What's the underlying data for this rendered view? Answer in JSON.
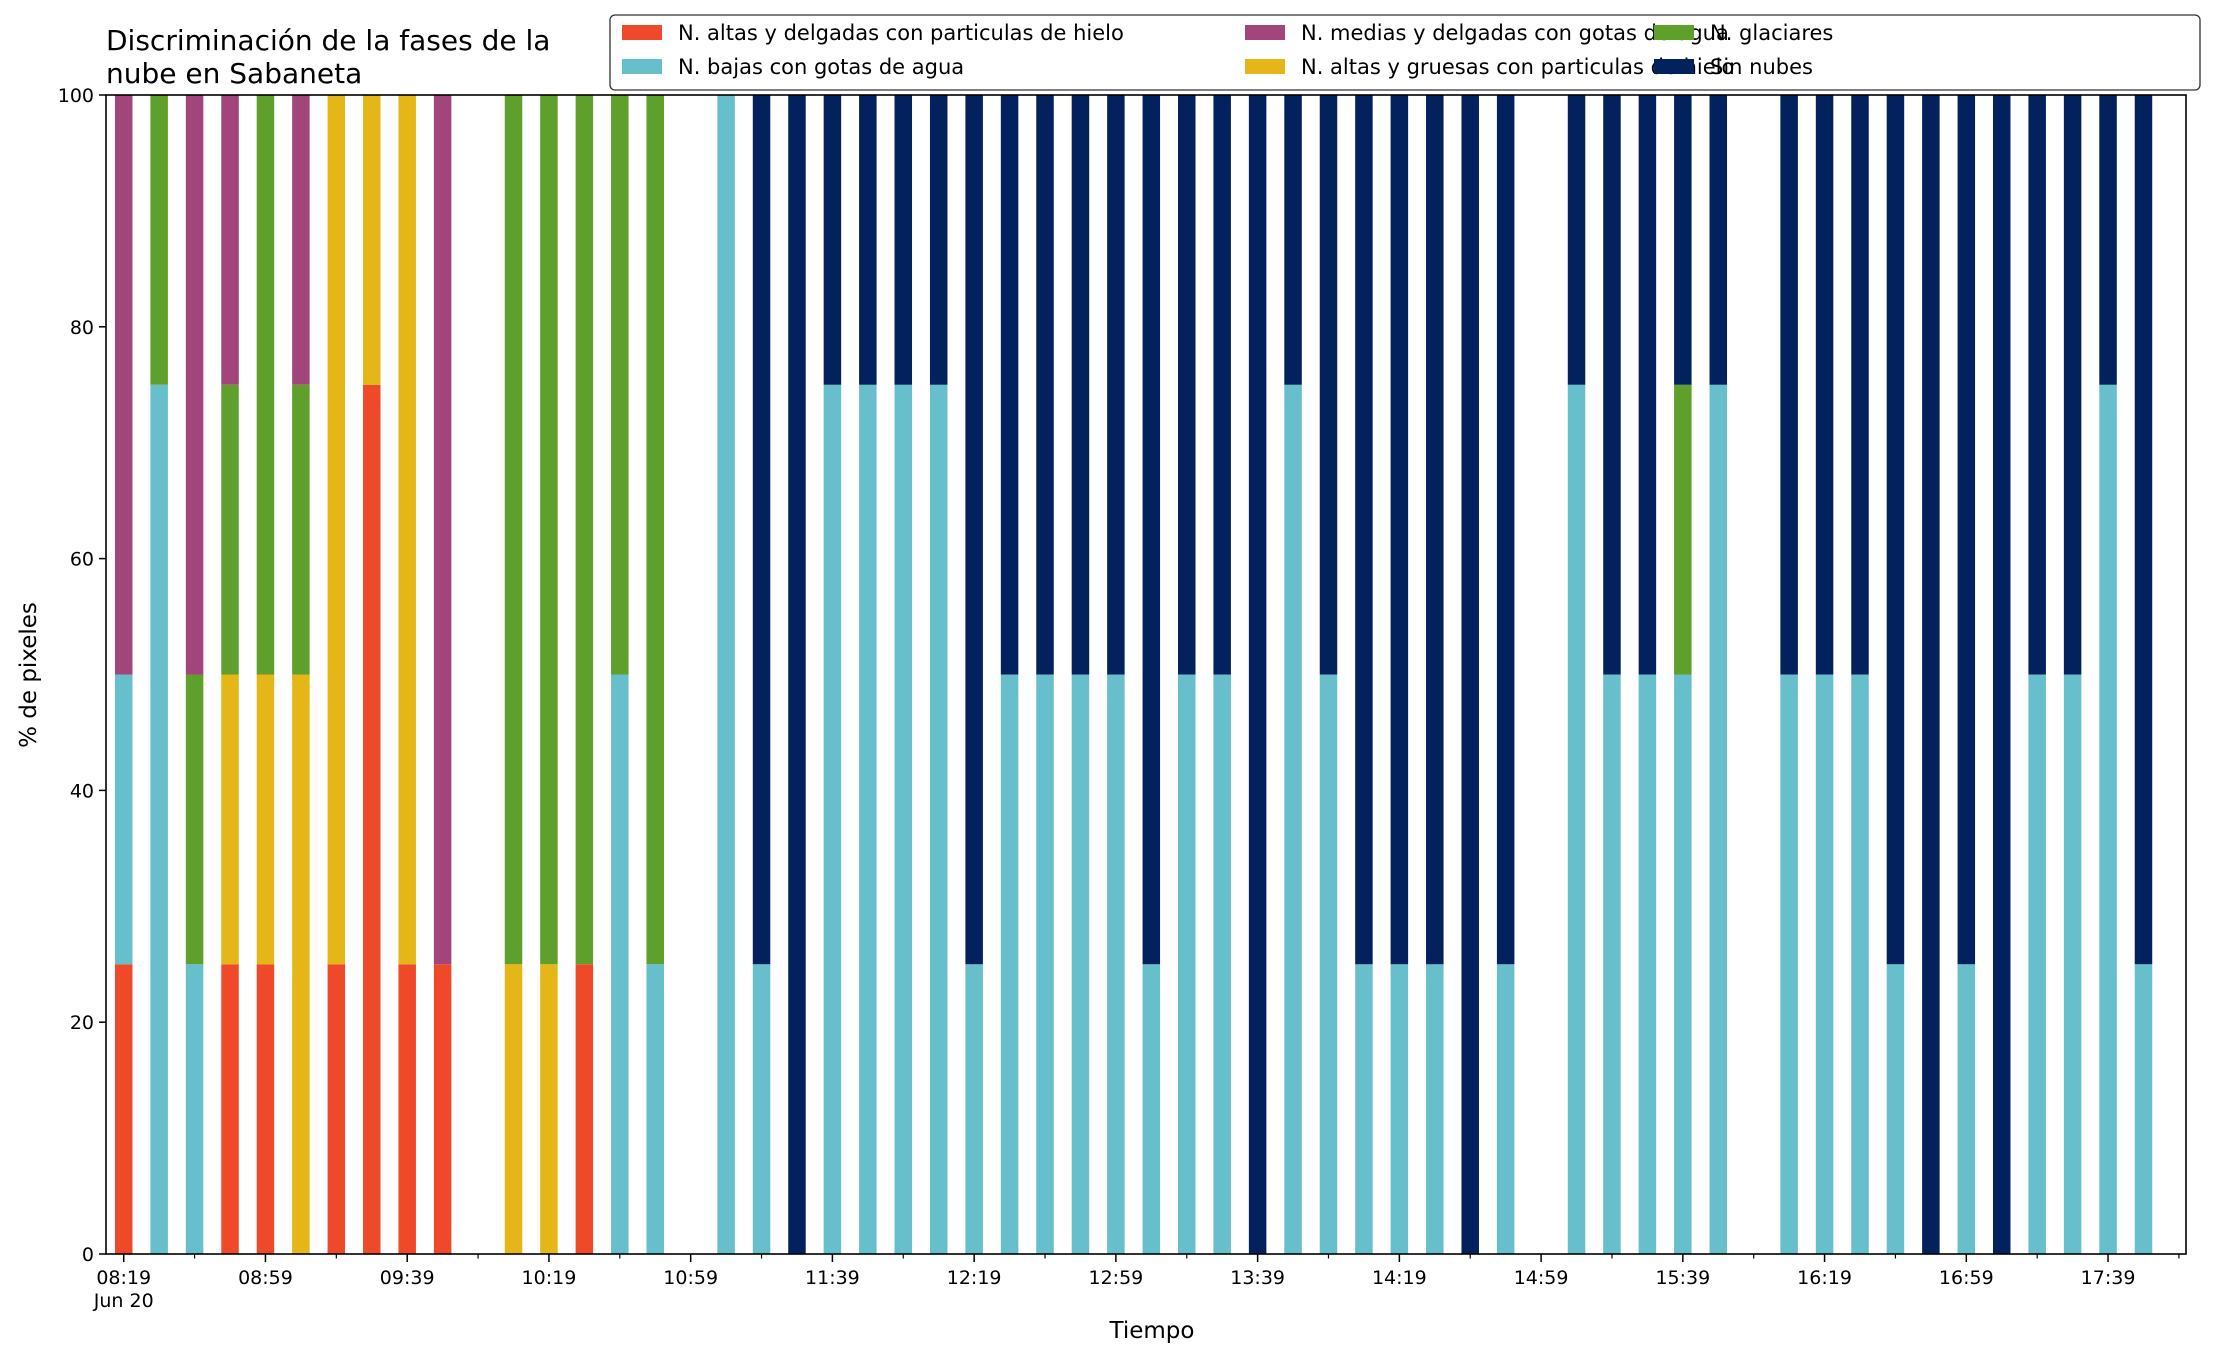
{
  "chart_data": {
    "type": "bar",
    "stacked": true,
    "title": "Discriminación de la fases de la nube en Sabaneta",
    "title_lines": [
      "Discriminación de la fases de la",
      "nube en Sabaneta"
    ],
    "xlabel": "Tiempo",
    "ylabel": "% de pixeles",
    "ylim": [
      0,
      100
    ],
    "yticks": [
      0,
      20,
      40,
      60,
      80,
      100
    ],
    "xlim": [
      "08:14",
      "18:01"
    ],
    "date_label": "Jun 20",
    "grid": false,
    "legend_position": "top-right",
    "xtick_labels": [
      "08:19",
      "08:59",
      "09:39",
      "10:19",
      "10:59",
      "11:39",
      "12:19",
      "12:59",
      "13:39",
      "14:19",
      "14:59",
      "15:39",
      "16:19",
      "16:59",
      "17:39"
    ],
    "minor_ticks_every_minutes": 20,
    "series": [
      {
        "name": "N. altas y delgadas con particulas de hielo",
        "color": "#ee4a2a"
      },
      {
        "name": "N. altas y gruesas con particulas de hielo",
        "color": "#e5b617"
      },
      {
        "name": "N. bajas con gotas de agua",
        "color": "#66bfcb"
      },
      {
        "name": "N. glaciares",
        "color": "#5f9f2b"
      },
      {
        "name": "N. medias y delgadas con gotas de agua",
        "color": "#a2457b"
      },
      {
        "name": "Sin nubes",
        "color": "#03215d"
      }
    ],
    "legend_order": [
      0,
      2,
      4,
      1,
      3,
      5
    ],
    "bars": [
      {
        "time": "08:19",
        "values": [
          25,
          0,
          25,
          0,
          50,
          0
        ]
      },
      {
        "time": "08:29",
        "values": [
          0,
          0,
          75,
          25,
          0,
          0
        ]
      },
      {
        "time": "08:39",
        "values": [
          0,
          0,
          25,
          25,
          50,
          0
        ]
      },
      {
        "time": "08:49",
        "values": [
          25,
          25,
          0,
          25,
          25,
          0
        ]
      },
      {
        "time": "08:59",
        "values": [
          25,
          25,
          0,
          50,
          0,
          0
        ]
      },
      {
        "time": "09:09",
        "values": [
          0,
          50,
          0,
          25,
          25,
          0
        ]
      },
      {
        "time": "09:19",
        "values": [
          25,
          75,
          0,
          0,
          0,
          0
        ]
      },
      {
        "time": "09:29",
        "values": [
          75,
          25,
          0,
          0,
          0,
          0
        ]
      },
      {
        "time": "09:39",
        "values": [
          25,
          75,
          0,
          0,
          0,
          0
        ]
      },
      {
        "time": "09:49",
        "values": [
          25,
          0,
          0,
          0,
          75,
          0
        ]
      },
      {
        "time": "10:09",
        "values": [
          0,
          25,
          0,
          75,
          0,
          0
        ]
      },
      {
        "time": "10:19",
        "values": [
          0,
          25,
          0,
          75,
          0,
          0
        ]
      },
      {
        "time": "10:29",
        "values": [
          25,
          0,
          0,
          75,
          0,
          0
        ]
      },
      {
        "time": "10:39",
        "values": [
          0,
          0,
          50,
          50,
          0,
          0
        ]
      },
      {
        "time": "10:49",
        "values": [
          0,
          0,
          25,
          75,
          0,
          0
        ]
      },
      {
        "time": "11:09",
        "values": [
          0,
          0,
          100,
          0,
          0,
          0
        ]
      },
      {
        "time": "11:19",
        "values": [
          0,
          0,
          25,
          0,
          0,
          75
        ]
      },
      {
        "time": "11:29",
        "values": [
          0,
          0,
          0,
          0,
          0,
          100
        ]
      },
      {
        "time": "11:39",
        "values": [
          0,
          0,
          75,
          0,
          0,
          25
        ]
      },
      {
        "time": "11:49",
        "values": [
          0,
          0,
          75,
          0,
          0,
          25
        ]
      },
      {
        "time": "11:59",
        "values": [
          0,
          0,
          75,
          0,
          0,
          25
        ]
      },
      {
        "time": "12:09",
        "values": [
          0,
          0,
          75,
          0,
          0,
          25
        ]
      },
      {
        "time": "12:19",
        "values": [
          0,
          0,
          25,
          0,
          0,
          75
        ]
      },
      {
        "time": "12:29",
        "values": [
          0,
          0,
          50,
          0,
          0,
          50
        ]
      },
      {
        "time": "12:39",
        "values": [
          0,
          0,
          50,
          0,
          0,
          50
        ]
      },
      {
        "time": "12:49",
        "values": [
          0,
          0,
          50,
          0,
          0,
          50
        ]
      },
      {
        "time": "12:59",
        "values": [
          0,
          0,
          50,
          0,
          0,
          50
        ]
      },
      {
        "time": "13:09",
        "values": [
          0,
          0,
          25,
          0,
          0,
          75
        ]
      },
      {
        "time": "13:19",
        "values": [
          0,
          0,
          50,
          0,
          0,
          50
        ]
      },
      {
        "time": "13:29",
        "values": [
          0,
          0,
          50,
          0,
          0,
          50
        ]
      },
      {
        "time": "13:39",
        "values": [
          0,
          0,
          0,
          0,
          0,
          100
        ]
      },
      {
        "time": "13:49",
        "values": [
          0,
          0,
          75,
          0,
          0,
          25
        ]
      },
      {
        "time": "13:59",
        "values": [
          0,
          0,
          50,
          0,
          0,
          50
        ]
      },
      {
        "time": "14:09",
        "values": [
          0,
          0,
          25,
          0,
          0,
          75
        ]
      },
      {
        "time": "14:19",
        "values": [
          0,
          0,
          25,
          0,
          0,
          75
        ]
      },
      {
        "time": "14:29",
        "values": [
          0,
          0,
          25,
          0,
          0,
          75
        ]
      },
      {
        "time": "14:39",
        "values": [
          0,
          0,
          0,
          0,
          0,
          100
        ]
      },
      {
        "time": "14:49",
        "values": [
          0,
          0,
          25,
          0,
          0,
          75
        ]
      },
      {
        "time": "15:09",
        "values": [
          0,
          0,
          75,
          0,
          0,
          25
        ]
      },
      {
        "time": "15:19",
        "values": [
          0,
          0,
          50,
          0,
          0,
          50
        ]
      },
      {
        "time": "15:29",
        "values": [
          0,
          0,
          50,
          0,
          0,
          50
        ]
      },
      {
        "time": "15:39",
        "values": [
          0,
          0,
          50,
          25,
          0,
          25
        ]
      },
      {
        "time": "15:49",
        "values": [
          0,
          0,
          75,
          0,
          0,
          25
        ]
      },
      {
        "time": "16:09",
        "values": [
          0,
          0,
          50,
          0,
          0,
          50
        ]
      },
      {
        "time": "16:19",
        "values": [
          0,
          0,
          50,
          0,
          0,
          50
        ]
      },
      {
        "time": "16:29",
        "values": [
          0,
          0,
          50,
          0,
          0,
          50
        ]
      },
      {
        "time": "16:39",
        "values": [
          0,
          0,
          25,
          0,
          0,
          75
        ]
      },
      {
        "time": "16:49",
        "values": [
          0,
          0,
          0,
          0,
          0,
          100
        ]
      },
      {
        "time": "16:59",
        "values": [
          0,
          0,
          25,
          0,
          0,
          75
        ]
      },
      {
        "time": "17:09",
        "values": [
          0,
          0,
          0,
          0,
          0,
          100
        ]
      },
      {
        "time": "17:19",
        "values": [
          0,
          0,
          50,
          0,
          0,
          50
        ]
      },
      {
        "time": "17:29",
        "values": [
          0,
          0,
          50,
          0,
          0,
          50
        ]
      },
      {
        "time": "17:39",
        "values": [
          0,
          0,
          75,
          0,
          0,
          25
        ]
      },
      {
        "time": "17:49",
        "values": [
          0,
          0,
          25,
          0,
          0,
          75
        ]
      }
    ]
  }
}
